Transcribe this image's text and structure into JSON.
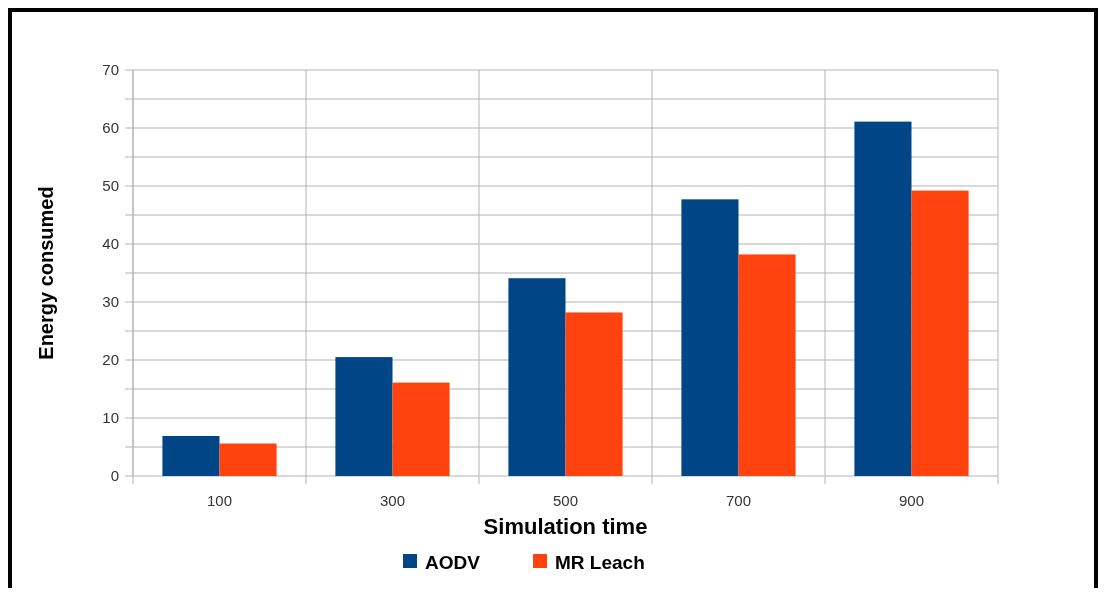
{
  "chart_data": {
    "type": "bar",
    "xlabel": "Simulation time",
    "ylabel": "Energy consumed",
    "categories": [
      "100",
      "300",
      "500",
      "700",
      "900"
    ],
    "series": [
      {
        "name": "AODV",
        "color": "#004586",
        "values": [
          6.9,
          20.5,
          34.1,
          47.7,
          61.1
        ]
      },
      {
        "name": "MR Leach",
        "color": "#ff420e",
        "values": [
          5.6,
          16.1,
          28.2,
          38.2,
          49.2
        ]
      }
    ],
    "ylim": [
      0,
      70
    ],
    "yticks": [
      0,
      {
        "value": 5,
        "label": null
      },
      10,
      {
        "value": 15,
        "label": null
      },
      20,
      {
        "value": 25,
        "label": null
      },
      30,
      {
        "value": 35,
        "label": null
      },
      40,
      {
        "value": 45,
        "label": null
      },
      50,
      {
        "value": 55,
        "label": null
      },
      60,
      {
        "value": 65,
        "label": null
      },
      70
    ],
    "grid": true,
    "legend": "bottom"
  }
}
